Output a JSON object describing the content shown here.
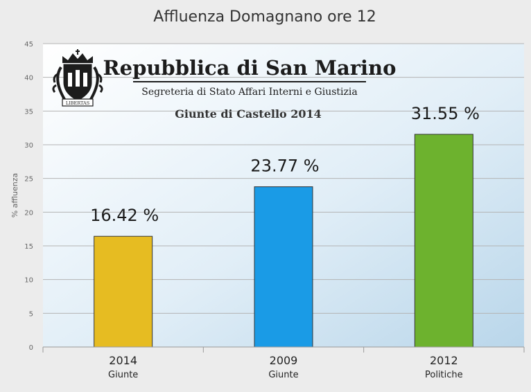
{
  "chart_data": {
    "type": "bar",
    "title": "Affluenza Domagnano ore 12",
    "ylabel": "% affluenza",
    "xlabel": "",
    "ylim": [
      0,
      45
    ],
    "yticks": [
      0,
      5,
      10,
      15,
      20,
      25,
      30,
      35,
      40,
      45
    ],
    "grid": true,
    "categories": [
      {
        "label": "2014",
        "sublabel": "Giunte"
      },
      {
        "label": "2009",
        "sublabel": "Giunte"
      },
      {
        "label": "2012",
        "sublabel": "Politiche"
      }
    ],
    "values": [
      16.42,
      23.77,
      31.55
    ],
    "data_labels": [
      "16.42 %",
      "23.77 %",
      "31.55 %"
    ],
    "colors": [
      "#e6bc22",
      "#1a9be6",
      "#6db22e"
    ]
  },
  "banner": {
    "title": "Repubblica di San Marino",
    "subtitle": "Segreteria di Stato Affari Interni e Giustizia",
    "event": "Giunte di Castello 2014",
    "seal_text": "LIBERTAS"
  }
}
